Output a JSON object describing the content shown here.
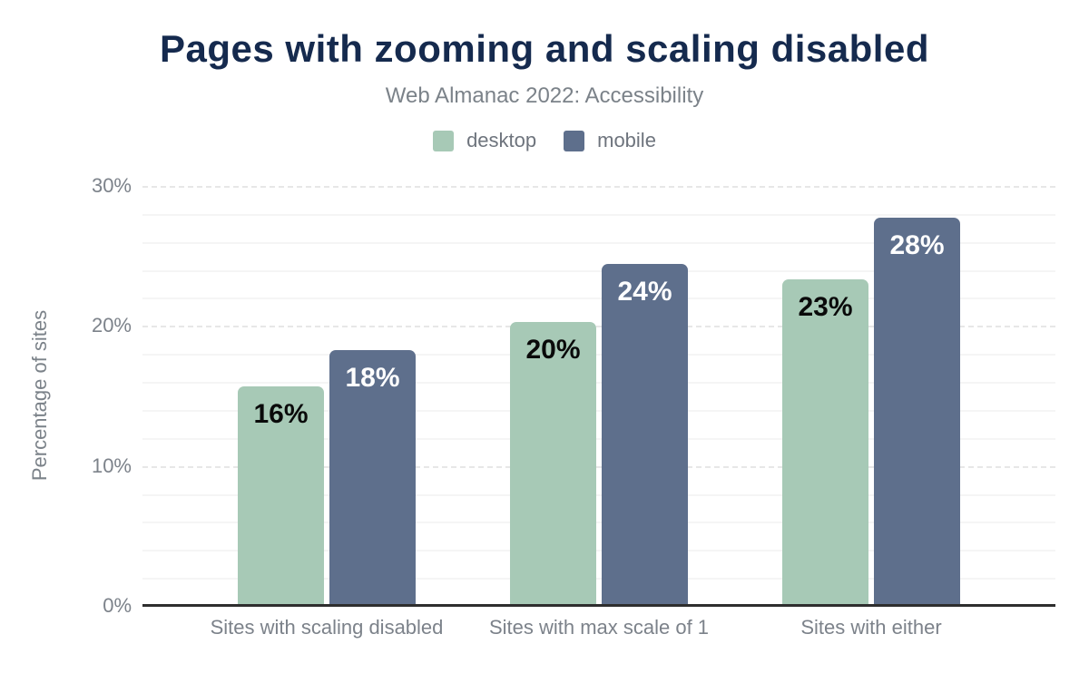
{
  "header": {
    "title": "Pages with zooming and scaling disabled",
    "subtitle": "Web Almanac 2022: Accessibility"
  },
  "chart_data": {
    "type": "bar",
    "title": "Pages with zooming and scaling disabled",
    "subtitle": "Web Almanac 2022: Accessibility",
    "categories": [
      "Sites with scaling disabled",
      "Sites with max scale of 1",
      "Sites with either"
    ],
    "series": [
      {
        "name": "desktop",
        "values": [
          15.7,
          20.3,
          23.3
        ],
        "value_labels": [
          "16%",
          "20%",
          "23%"
        ],
        "color": "#a7c9b6",
        "label_color": "#0a0a0a"
      },
      {
        "name": "mobile",
        "values": [
          18.3,
          24.4,
          27.7
        ],
        "value_labels": [
          "18%",
          "24%",
          "28%"
        ],
        "color": "#5e6f8c",
        "label_color": "#ffffff"
      }
    ],
    "xlabel": "",
    "ylabel": "Percentage of sites",
    "ylim": [
      0,
      30
    ],
    "yticks": [
      0,
      10,
      20,
      30
    ],
    "ytick_labels": [
      "0%",
      "10%",
      "20%",
      "30%"
    ],
    "minor_grid_step": 2,
    "grid": true,
    "legend_position": "top-center"
  },
  "colors": {
    "title": "#152a4e",
    "subtitle": "#7b8289",
    "tick_label": "#7c828a",
    "legend_label": "#6e747d",
    "axis_line": "#2e2e2e",
    "grid_major": "#e7e7e7",
    "grid_minor": "#f5f5f5",
    "background": "#ffffff"
  }
}
